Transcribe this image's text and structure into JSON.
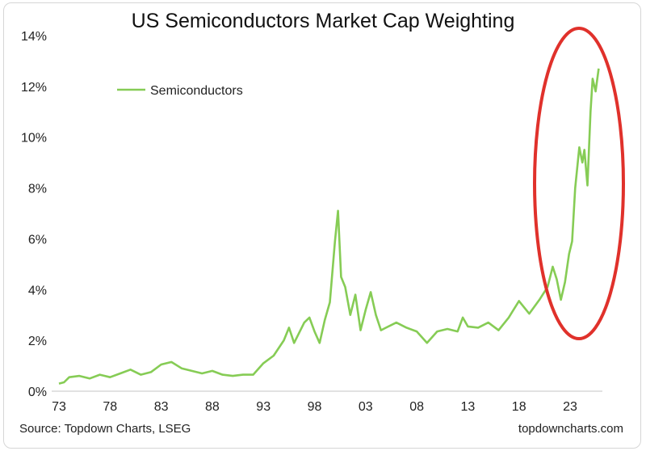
{
  "chart_data": {
    "type": "line",
    "title": "US Semiconductors Market Cap Weighting",
    "xlabel": "",
    "ylabel": "",
    "x_tick_labels": [
      "73",
      "78",
      "83",
      "88",
      "93",
      "98",
      "03",
      "08",
      "13",
      "18",
      "23"
    ],
    "x_tick_years": [
      1973,
      1978,
      1983,
      1988,
      1993,
      1998,
      2003,
      2008,
      2013,
      2018,
      2023
    ],
    "y_tick_labels": [
      "0%",
      "2%",
      "4%",
      "6%",
      "8%",
      "10%",
      "12%",
      "14%"
    ],
    "y_tick_values": [
      0,
      2,
      4,
      6,
      8,
      10,
      12,
      14
    ],
    "xlim": [
      1973,
      2026
    ],
    "ylim": [
      0,
      14
    ],
    "grid": false,
    "legend_position": "top-left",
    "series": [
      {
        "name": "Semiconductors",
        "color": "#86cc55",
        "x": [
          1973,
          1973.5,
          1974,
          1975,
          1976,
          1977,
          1978,
          1979,
          1980,
          1981,
          1982,
          1983,
          1984,
          1985,
          1986,
          1987,
          1988,
          1989,
          1990,
          1991,
          1992,
          1993,
          1994,
          1995,
          1995.5,
          1996,
          1997,
          1997.5,
          1998,
          1998.5,
          1999,
          1999.5,
          2000,
          2000.3,
          2000.6,
          2001,
          2001.5,
          2002,
          2002.5,
          2003,
          2003.5,
          2004,
          2004.5,
          2005,
          2006,
          2007,
          2008,
          2009,
          2010,
          2011,
          2012,
          2012.5,
          2013,
          2014,
          2015,
          2016,
          2017,
          2018,
          2019,
          2020,
          2020.8,
          2021.3,
          2021.7,
          2022.1,
          2022.5,
          2022.9,
          2023.2,
          2023.5,
          2023.9,
          2024.2,
          2024.4,
          2024.7,
          2025.0,
          2025.2,
          2025.5,
          2025.8
        ],
        "y": [
          0.3,
          0.35,
          0.55,
          0.6,
          0.5,
          0.65,
          0.55,
          0.7,
          0.85,
          0.65,
          0.75,
          1.05,
          1.15,
          0.9,
          0.8,
          0.7,
          0.8,
          0.65,
          0.6,
          0.65,
          0.65,
          1.1,
          1.4,
          2.0,
          2.5,
          1.9,
          2.7,
          2.9,
          2.35,
          1.9,
          2.8,
          3.5,
          5.9,
          7.1,
          4.5,
          4.1,
          3.0,
          3.8,
          2.4,
          3.2,
          3.9,
          3.0,
          2.4,
          2.5,
          2.7,
          2.5,
          2.35,
          1.9,
          2.35,
          2.45,
          2.35,
          2.9,
          2.55,
          2.5,
          2.7,
          2.4,
          2.9,
          3.55,
          3.05,
          3.6,
          4.1,
          4.9,
          4.4,
          3.6,
          4.3,
          5.4,
          5.9,
          8.0,
          9.6,
          9.0,
          9.5,
          8.1,
          11.0,
          12.3,
          11.8,
          12.7
        ]
      }
    ],
    "annotations": [
      {
        "shape": "ellipse",
        "color": "#e0312b",
        "highlights": "2021–2025 surge"
      }
    ]
  },
  "footer": {
    "source": "Source: Topdown Charts, LSEG",
    "brand": "topdowncharts.com"
  }
}
